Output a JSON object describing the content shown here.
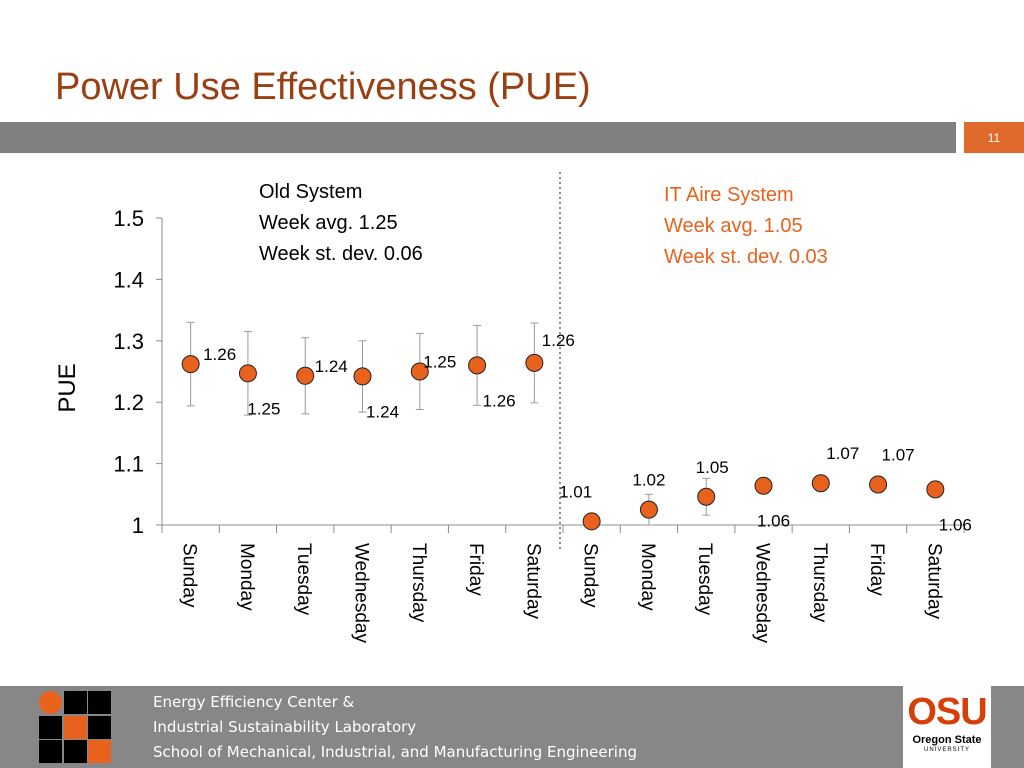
{
  "slide": {
    "title": "Power Use Effectiveness (PUE)",
    "page_number": "11"
  },
  "annotations": {
    "old_system": [
      "Old System",
      "Week avg. 1.25",
      "Week st. dev. 0.06"
    ],
    "new_system": [
      "IT Aire System",
      "Week avg. 1.05",
      "Week st. dev. 0.03"
    ]
  },
  "footer": {
    "lines": [
      "Energy Efficiency Center &",
      "Industrial Sustainability Laboratory",
      "School of Mechanical, Industrial, and Manufacturing Engineering"
    ],
    "logo_word": "OSU",
    "logo_name": "Oregon State",
    "logo_subtitle": "UNIVERSITY"
  },
  "colors": {
    "title": "#9a3f12",
    "accent": "#e8621e",
    "bar": "#808080",
    "footer": "#878787"
  },
  "chart_data": {
    "type": "scatter",
    "ylabel": "PUE",
    "xlabel": "",
    "ylim": [
      1,
      1.5
    ],
    "yticks": [
      1,
      1.1,
      1.2,
      1.3,
      1.4,
      1.5
    ],
    "ytick_labels": [
      "1",
      "1.1",
      "1.2",
      "1.3",
      "1.4",
      "1.5"
    ],
    "categories": [
      "Sunday",
      "Monday",
      "Tuesday",
      "Wednesday",
      "Thursday",
      "Friday",
      "Saturday",
      "Sunday",
      "Monday",
      "Tuesday",
      "Wednesday",
      "Thursday",
      "Friday",
      "Saturday"
    ],
    "values": [
      1.262,
      1.247,
      1.243,
      1.242,
      1.25,
      1.26,
      1.264,
      1.006,
      1.025,
      1.046,
      1.064,
      1.068,
      1.066,
      1.058
    ],
    "error": [
      0.068,
      0.068,
      0.062,
      0.058,
      0.062,
      0.065,
      0.065,
      0.005,
      0.025,
      0.03,
      0.008,
      0.01,
      0.006,
      0.006
    ],
    "labels": [
      "1.26",
      "1.25",
      "1.24",
      "1.24",
      "1.25",
      "1.26",
      "1.26",
      "1.01",
      "1.02",
      "1.05",
      "1.06",
      "1.07",
      "1.07",
      "1.06"
    ],
    "marker_color": "#e8621e",
    "divider_after_index": 6,
    "grid": false
  }
}
